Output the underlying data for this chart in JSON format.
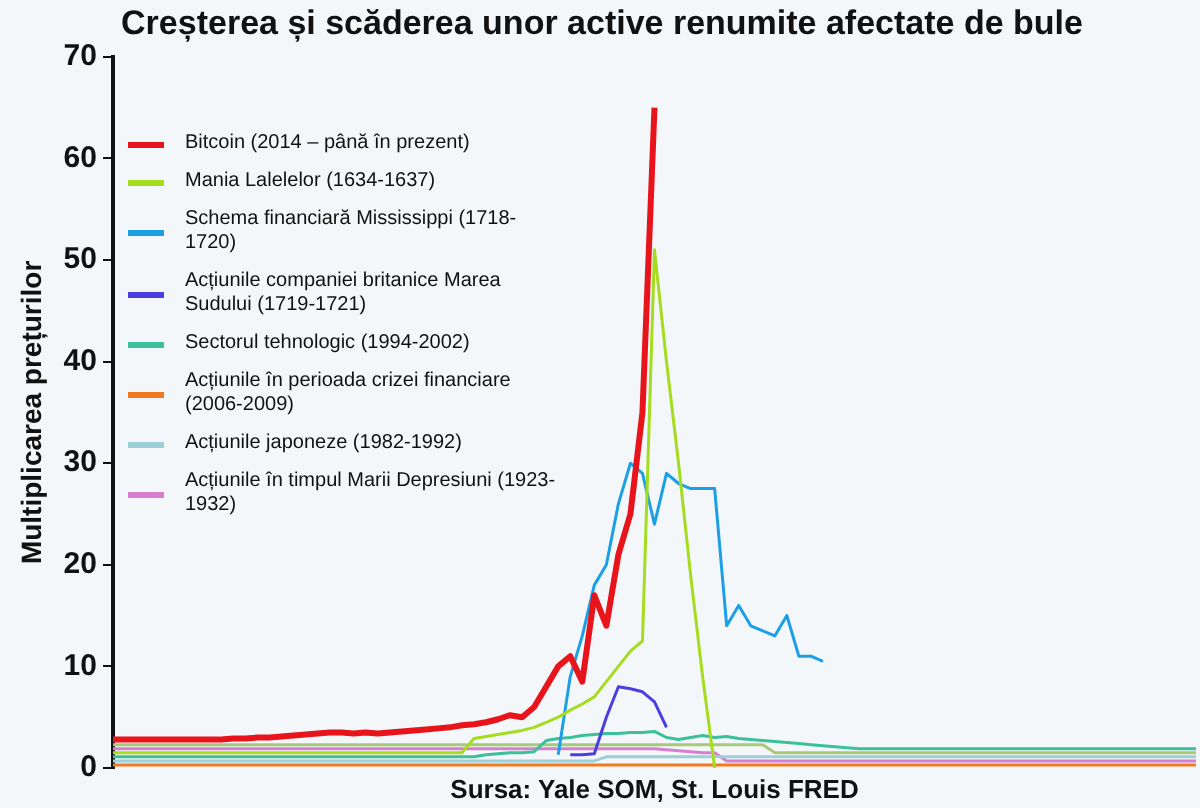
{
  "chart_data": {
    "type": "line",
    "title": "Creșterea și scăderea unor active renumite afectate de bule",
    "ylabel": "Multiplicarea prețurilor",
    "categories": [
      null,
      null,
      null,
      null,
      null,
      null,
      null,
      null,
      null,
      null,
      null,
      null,
      null,
      null,
      null,
      null,
      null,
      null,
      null,
      null,
      null,
      null,
      null,
      null,
      null,
      null,
      null,
      null,
      null,
      null,
      null,
      null,
      null,
      null,
      null,
      null,
      null,
      null,
      null,
      null,
      null,
      null,
      null,
      null,
      null,
      null,
      null,
      null,
      null,
      null,
      null,
      null,
      null,
      null,
      null,
      null,
      null,
      null,
      null,
      null,
      null,
      null,
      null,
      null,
      null,
      null,
      null,
      null,
      null,
      null,
      null,
      null,
      null,
      null,
      null,
      null,
      null,
      null,
      null,
      null,
      null,
      null,
      null,
      null,
      null,
      null,
      null,
      null,
      null,
      null,
      null
    ],
    "ylim": [
      0,
      70
    ],
    "yticks": [
      0,
      10,
      20,
      30,
      40,
      50,
      60,
      70
    ],
    "grid": false,
    "legend": "top left",
    "marker": "none",
    "tick_labels": "y",
    "annotations": [
      "Sursa: Yale SOM, St. Louis FRED"
    ],
    "series": [
      {
        "name": "Bitcoin (2014 – până în prezent)",
        "color": "#e8141b",
        "values": [
          2.8,
          2.8,
          2.8,
          2.8,
          2.8,
          2.8,
          2.8,
          2.8,
          2.8,
          2.8,
          2.9,
          2.9,
          3,
          3,
          3.1,
          3.2,
          3.3,
          3.4,
          3.5,
          3.5,
          3.4,
          3.5,
          3.4,
          3.5,
          3.6,
          3.7,
          3.8,
          3.9,
          4,
          4.2,
          4.3,
          4.5,
          4.8,
          5.2,
          5,
          6,
          8,
          10,
          11,
          8.5,
          17,
          14,
          21,
          25,
          35,
          65,
          null,
          null,
          null,
          null,
          null,
          null,
          null,
          null,
          null,
          null,
          null,
          null,
          null,
          null,
          null,
          null,
          null,
          null,
          null,
          null,
          null,
          null,
          null,
          null,
          null,
          null,
          null,
          null,
          null,
          null,
          null,
          null,
          null,
          null,
          null,
          null,
          null,
          null,
          null,
          null,
          null,
          null,
          null,
          null,
          null
        ]
      },
      {
        "name": "Mania Lalelelor (1634-1637)",
        "color": "#a6dc1e",
        "values": [
          1.5,
          1.5,
          1.5,
          1.5,
          1.5,
          1.5,
          1.5,
          1.5,
          1.5,
          1.5,
          1.5,
          1.5,
          1.5,
          1.5,
          1.5,
          1.5,
          1.5,
          1.5,
          1.5,
          1.5,
          1.5,
          1.5,
          1.5,
          1.5,
          1.5,
          1.5,
          1.5,
          1.5,
          1.5,
          1.5,
          2.9,
          3.1,
          3.3,
          3.5,
          3.7,
          4,
          4.5,
          5,
          5.7,
          6.3,
          7,
          8.5,
          10,
          11.5,
          12.5,
          51,
          40,
          30,
          19,
          9,
          0,
          null,
          null,
          null,
          null,
          null,
          null,
          null,
          null,
          null,
          null,
          null,
          null,
          null,
          null,
          null,
          null,
          null,
          null,
          null,
          null,
          null,
          null,
          null,
          null,
          null,
          null,
          null,
          null,
          null,
          null,
          null,
          null,
          null,
          null,
          null,
          null,
          null,
          null,
          null,
          null
        ]
      },
      {
        "name": "Schema financiară Mississippi (1718-1720)",
        "color": "#1d9fe5",
        "values": [
          null,
          null,
          null,
          null,
          null,
          null,
          null,
          null,
          null,
          null,
          null,
          null,
          null,
          null,
          null,
          null,
          null,
          null,
          null,
          null,
          null,
          null,
          null,
          null,
          null,
          null,
          null,
          null,
          null,
          null,
          null,
          null,
          null,
          null,
          null,
          null,
          null,
          1.3,
          9,
          13,
          18,
          20,
          26,
          30,
          29,
          24,
          29,
          28,
          27.5,
          27.5,
          27.5,
          14,
          16,
          14,
          13.5,
          13,
          15,
          11,
          11,
          10.5,
          null,
          null,
          null,
          null,
          null,
          null,
          null,
          null,
          null,
          null,
          null,
          null,
          null,
          null,
          null,
          null,
          null,
          null,
          null,
          null,
          null,
          null,
          null,
          null,
          null,
          null,
          null,
          null,
          null,
          null,
          null
        ]
      },
      {
        "name": "Acțiunile companiei britanice Marea Sudului (1719-1721)",
        "color": "#4a3ee0",
        "values": [
          null,
          null,
          null,
          null,
          null,
          null,
          null,
          null,
          null,
          null,
          null,
          null,
          null,
          null,
          null,
          null,
          null,
          null,
          null,
          null,
          null,
          null,
          null,
          null,
          null,
          null,
          null,
          null,
          null,
          null,
          null,
          null,
          null,
          null,
          null,
          null,
          null,
          null,
          1.3,
          1.3,
          1.4,
          5,
          8,
          7.8,
          7.5,
          6.5,
          4,
          null,
          null,
          null,
          null,
          null,
          null,
          null,
          null,
          null,
          null,
          null,
          null,
          null,
          null,
          null,
          null,
          null,
          null,
          null,
          null,
          null,
          null,
          null,
          null,
          null,
          null,
          null,
          null,
          null,
          null,
          null,
          null,
          null,
          null,
          null,
          null,
          null,
          null,
          null,
          null,
          null,
          null,
          null,
          null
        ]
      },
      {
        "name": "Sectorul tehnologic (1994-2002)",
        "color": "#3cc09a",
        "values": [
          1.1,
          1.1,
          1.1,
          1.1,
          1.1,
          1.1,
          1.1,
          1.1,
          1.1,
          1.1,
          1.1,
          1.1,
          1.1,
          1.1,
          1.1,
          1.1,
          1.1,
          1.1,
          1.1,
          1.1,
          1.1,
          1.1,
          1.1,
          1.1,
          1.1,
          1.1,
          1.1,
          1.1,
          1.1,
          1.1,
          1.1,
          1.3,
          1.4,
          1.5,
          1.5,
          1.6,
          2.7,
          2.9,
          3,
          3.2,
          3.3,
          3.4,
          3.4,
          3.5,
          3.5,
          3.6,
          3,
          2.8,
          3,
          3.2,
          3,
          3.1,
          2.9,
          2.8,
          2.7,
          2.6,
          2.5,
          2.4,
          2.3,
          2.2,
          2.1,
          2,
          1.9,
          1.9,
          1.9,
          1.9,
          1.9,
          1.9,
          1.9,
          1.9,
          1.9,
          1.9,
          1.9,
          1.9,
          1.9,
          1.9,
          1.9,
          1.9,
          1.9,
          1.9,
          1.9,
          1.9,
          1.9,
          1.9,
          1.9,
          1.9,
          1.9,
          1.9,
          1.9,
          1.9,
          1.9
        ]
      },
      {
        "name": "Acțiunile în perioada crizei financiare (2006-2009)",
        "color": "#f07a20",
        "values": [
          0.3,
          0.3,
          0.3,
          0.3,
          0.3,
          0.3,
          0.3,
          0.3,
          0.3,
          0.3,
          0.3,
          0.3,
          0.3,
          0.3,
          0.3,
          0.3,
          0.3,
          0.3,
          0.3,
          0.3,
          0.3,
          0.3,
          0.3,
          0.3,
          0.3,
          0.3,
          0.3,
          0.3,
          0.3,
          0.3,
          0.3,
          0.3,
          0.3,
          0.3,
          0.3,
          0.3,
          0.3,
          0.3,
          0.3,
          0.3,
          0.3,
          0.3,
          0.3,
          0.3,
          0.3,
          0.3,
          0.3,
          0.3,
          0.3,
          0.3,
          0.3,
          0.3,
          0.3,
          0.3,
          0.3,
          0.3,
          0.3,
          0.3,
          0.3,
          0.3,
          0.3,
          0.3,
          0.3,
          0.3,
          0.3,
          0.3,
          0.3,
          0.3,
          0.3,
          0.3,
          0.3,
          0.3,
          0.3,
          0.3,
          0.3,
          0.3,
          0.3,
          0.3,
          0.3,
          0.3,
          0.3,
          0.3,
          0.3,
          0.3,
          0.3,
          0.3,
          0.3,
          0.3,
          0.3,
          0.3,
          0.3
        ]
      },
      {
        "name": "Acțiunile japoneze (1982-1992)",
        "color": "#9ccfd8",
        "values": [
          0.7,
          0.7,
          0.7,
          0.7,
          0.7,
          0.7,
          0.7,
          0.7,
          0.7,
          0.7,
          0.7,
          0.7,
          0.7,
          0.7,
          0.7,
          0.7,
          0.7,
          0.7,
          0.7,
          0.7,
          0.7,
          0.7,
          0.7,
          0.7,
          0.7,
          0.7,
          0.7,
          0.7,
          0.7,
          0.7,
          0.7,
          0.7,
          0.7,
          0.7,
          0.7,
          0.7,
          0.7,
          0.7,
          0.7,
          0.7,
          0.7,
          1.1,
          1.1,
          1.1,
          1.1,
          1.1,
          1.1,
          1.1,
          1.1,
          1.1,
          1.1,
          1.1,
          1.1,
          1.1,
          1.1,
          1.1,
          1.1,
          1.1,
          1.1,
          1.1,
          1.1,
          1.1,
          1.1,
          1.1,
          1.1,
          1.1,
          1.1,
          1.1,
          1.1,
          1.1,
          1.1,
          1.1,
          1.1,
          1.1,
          1.1,
          1.1,
          1.1,
          1.1,
          1.1,
          1.1,
          1.1,
          1.1,
          1.1,
          1.1,
          1.1,
          1.1,
          1.1,
          1.1,
          1.1,
          1.1,
          1.1
        ]
      },
      {
        "name": "Acțiunile în timpul Marii Depresiuni (1923-1932)",
        "color": "#d67fd0",
        "values": [
          1.9,
          1.9,
          1.9,
          1.9,
          1.9,
          1.9,
          1.9,
          1.9,
          1.9,
          1.9,
          1.9,
          1.9,
          1.9,
          1.9,
          1.9,
          1.9,
          1.9,
          1.9,
          1.9,
          1.9,
          1.9,
          1.9,
          1.9,
          1.9,
          1.9,
          1.9,
          1.9,
          1.9,
          1.9,
          1.9,
          1.9,
          1.9,
          1.9,
          1.9,
          1.9,
          1.9,
          1.9,
          1.9,
          1.9,
          1.9,
          1.9,
          1.9,
          1.9,
          1.9,
          1.9,
          1.9,
          1.8,
          1.7,
          1.6,
          1.5,
          1.5,
          0.7,
          0.7,
          0.7,
          0.7,
          0.7,
          0.7,
          0.7,
          0.7,
          0.7,
          0.7,
          0.7,
          0.7,
          0.7,
          0.7,
          0.7,
          0.7,
          0.7,
          0.7,
          0.7,
          0.7,
          0.7,
          0.7,
          0.7,
          0.7,
          0.7,
          0.7,
          0.7,
          0.7,
          0.7,
          0.7,
          0.7,
          0.7,
          0.7,
          0.7,
          0.7,
          0.7,
          0.7,
          0.7,
          0.7,
          0.7
        ]
      },
      {
        "color": "#a9c97a",
        "values": [
          2.3,
          2.3,
          2.3,
          2.3,
          2.3,
          2.3,
          2.3,
          2.3,
          2.3,
          2.3,
          2.3,
          2.3,
          2.3,
          2.3,
          2.3,
          2.3,
          2.3,
          2.3,
          2.3,
          2.3,
          2.3,
          2.3,
          2.3,
          2.3,
          2.3,
          2.3,
          2.3,
          2.3,
          2.3,
          2.3,
          2.3,
          2.3,
          2.3,
          2.3,
          2.3,
          2.3,
          2.3,
          2.3,
          2.3,
          2.3,
          2.3,
          2.3,
          2.3,
          2.3,
          2.3,
          2.3,
          2.3,
          2.3,
          2.3,
          2.3,
          2.3,
          2.3,
          2.3,
          2.3,
          2.3,
          1.5,
          1.5,
          1.5,
          1.5,
          1.5,
          1.5,
          1.5,
          1.5,
          1.5,
          1.5,
          1.5,
          1.5,
          1.5,
          1.5,
          1.5,
          1.5,
          1.5,
          1.5,
          1.5,
          1.5,
          1.5,
          1.5,
          1.5,
          1.5,
          1.5,
          1.5,
          1.5,
          1.5,
          1.5,
          1.5,
          1.5,
          1.5,
          1.5,
          1.5,
          1.5,
          1.5
        ]
      }
    ]
  }
}
